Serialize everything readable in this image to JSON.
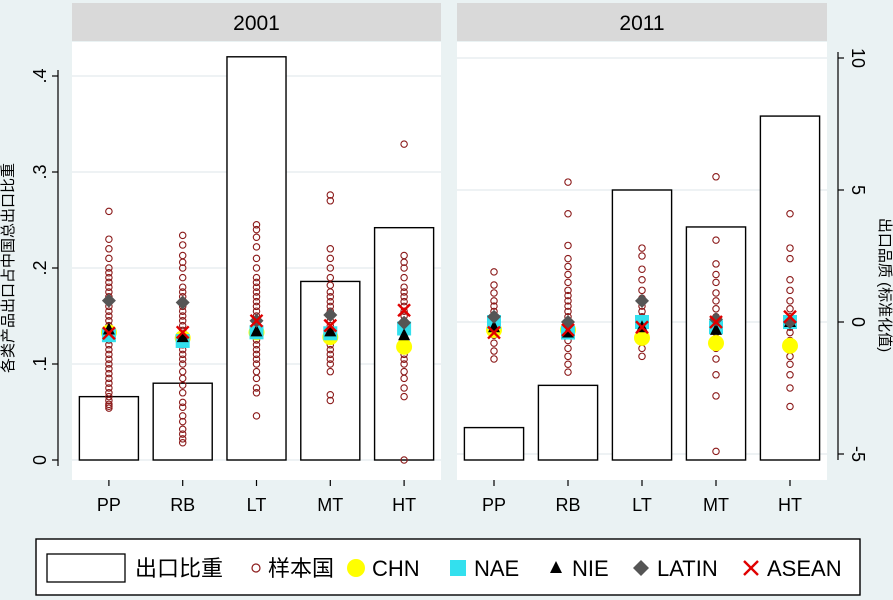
{
  "chart_data": {
    "type": "bar-scatter-overlay",
    "colors": {
      "background": "#eaf2f3",
      "panel_header": "#d9d9d9",
      "plot_bg": "#ffffff",
      "grid": "#e8eef0",
      "bar_edge": "#000000",
      "sample": "#8b1a1a",
      "CHN": "#ffff00",
      "NAE": "#33e0ee",
      "NIE": "#000000",
      "LATIN": "#555555",
      "ASEAN": "#e00000"
    },
    "categories": [
      "PP",
      "RB",
      "LT",
      "MT",
      "HT"
    ],
    "y_left": {
      "label": "各类产品出口占中国总出口比重",
      "range": [
        0,
        0.42
      ],
      "ticks": [
        0,
        0.1,
        0.2,
        0.3,
        0.4
      ],
      "tick_labels": [
        "0",
        ".1",
        ".2",
        ".3",
        ".4"
      ]
    },
    "y_right": {
      "label": "出口品质 (标准化值)",
      "range": [
        -6,
        10
      ],
      "ticks": [
        -5,
        0,
        5,
        10
      ],
      "tick_labels": [
        "-5",
        "0",
        "5",
        "10"
      ]
    },
    "panels": [
      {
        "title": "2001",
        "axis": "left",
        "bars": [
          0.066,
          0.08,
          0.42,
          0.186,
          0.242
        ],
        "samples": [
          [
            0.054,
            0.056,
            0.058,
            0.062,
            0.066,
            0.07,
            0.075,
            0.08,
            0.085,
            0.09,
            0.095,
            0.1,
            0.105,
            0.11,
            0.115,
            0.12,
            0.125,
            0.13,
            0.135,
            0.14,
            0.145,
            0.15,
            0.155,
            0.16,
            0.165,
            0.17,
            0.175,
            0.18,
            0.185,
            0.19,
            0.195,
            0.2,
            0.21,
            0.22,
            0.23,
            0.259
          ],
          [
            0.018,
            0.022,
            0.027,
            0.032,
            0.04,
            0.046,
            0.055,
            0.06,
            0.07,
            0.078,
            0.085,
            0.092,
            0.1,
            0.105,
            0.11,
            0.115,
            0.12,
            0.125,
            0.13,
            0.135,
            0.14,
            0.145,
            0.15,
            0.155,
            0.16,
            0.165,
            0.17,
            0.175,
            0.18,
            0.19,
            0.2,
            0.206,
            0.213,
            0.224,
            0.234
          ],
          [
            0.046,
            0.07,
            0.075,
            0.085,
            0.092,
            0.1,
            0.105,
            0.11,
            0.115,
            0.12,
            0.125,
            0.13,
            0.135,
            0.14,
            0.145,
            0.15,
            0.155,
            0.16,
            0.165,
            0.17,
            0.175,
            0.18,
            0.185,
            0.19,
            0.2,
            0.21,
            0.222,
            0.232,
            0.24,
            0.245
          ],
          [
            0.062,
            0.068,
            0.092,
            0.1,
            0.105,
            0.11,
            0.115,
            0.12,
            0.125,
            0.13,
            0.135,
            0.14,
            0.145,
            0.15,
            0.155,
            0.16,
            0.165,
            0.17,
            0.175,
            0.182,
            0.19,
            0.2,
            0.21,
            0.22,
            0.27,
            0.276
          ],
          [
            0.0,
            0.066,
            0.075,
            0.085,
            0.092,
            0.1,
            0.105,
            0.11,
            0.115,
            0.12,
            0.125,
            0.13,
            0.135,
            0.14,
            0.145,
            0.15,
            0.155,
            0.16,
            0.165,
            0.17,
            0.175,
            0.18,
            0.19,
            0.2,
            0.206,
            0.213,
            0.329
          ]
        ],
        "groups": {
          "CHN": [
            0.133,
            0.127,
            0.133,
            0.128,
            0.118
          ],
          "NAE": [
            0.13,
            0.124,
            0.133,
            0.132,
            0.137
          ],
          "NIE": [
            0.136,
            0.128,
            0.134,
            0.134,
            0.13
          ],
          "LATIN": [
            0.166,
            0.164,
            0.145,
            0.151,
            0.143
          ],
          "ASEAN": [
            0.132,
            0.133,
            0.145,
            0.14,
            0.156
          ]
        }
      },
      {
        "title": "2011",
        "axis": "right",
        "bars": [
          -4.0,
          -2.4,
          5.0,
          3.6,
          7.8
        ],
        "samples": [
          [
            -1.4,
            -1.1,
            -0.8,
            -0.5,
            -0.3,
            0.0,
            0.2,
            0.4,
            0.6,
            0.8,
            1.1,
            1.4,
            1.9
          ],
          [
            -1.9,
            -1.6,
            -1.3,
            -1.0,
            -0.7,
            -0.5,
            -0.3,
            0.0,
            0.2,
            0.4,
            0.6,
            0.8,
            1.0,
            1.2,
            1.5,
            1.8,
            2.1,
            2.4,
            2.9,
            4.1,
            5.3
          ],
          [
            -1.3,
            -1.0,
            -0.7,
            -0.4,
            -0.2,
            0.0,
            0.2,
            0.4,
            0.6,
            0.9,
            1.2,
            1.6,
            2.0,
            2.5,
            2.8
          ],
          [
            -4.9,
            -2.8,
            -2.0,
            -1.4,
            -1.0,
            -0.7,
            -0.4,
            -0.2,
            0.0,
            0.2,
            0.5,
            0.8,
            1.1,
            1.5,
            1.8,
            2.2,
            3.1,
            5.5
          ],
          [
            -3.2,
            -2.5,
            -2.0,
            -1.6,
            -1.3,
            -1.0,
            -0.7,
            -0.4,
            -0.2,
            0.0,
            0.2,
            0.5,
            0.8,
            1.2,
            1.6,
            2.4,
            2.8,
            4.1
          ]
        ],
        "groups": {
          "CHN": [
            -0.3,
            -0.3,
            -0.6,
            -0.8,
            -0.9
          ],
          "NAE": [
            0.0,
            -0.4,
            0.0,
            -0.2,
            0.0
          ],
          "NIE": [
            -0.2,
            -0.4,
            -0.2,
            -0.3,
            0.0
          ],
          "LATIN": [
            0.2,
            0.0,
            0.8,
            0.1,
            0.0
          ],
          "ASEAN": [
            -0.4,
            -0.3,
            -0.2,
            0.0,
            0.2
          ]
        }
      }
    ],
    "legend": {
      "position": "bottom",
      "items": [
        {
          "key": "bar",
          "label": "出口比重"
        },
        {
          "key": "sample",
          "label": "样本国"
        },
        {
          "key": "CHN",
          "label": "CHN"
        },
        {
          "key": "NAE",
          "label": "NAE"
        },
        {
          "key": "NIE",
          "label": "NIE"
        },
        {
          "key": "LATIN",
          "label": "LATIN"
        },
        {
          "key": "ASEAN",
          "label": "ASEAN"
        }
      ]
    }
  }
}
